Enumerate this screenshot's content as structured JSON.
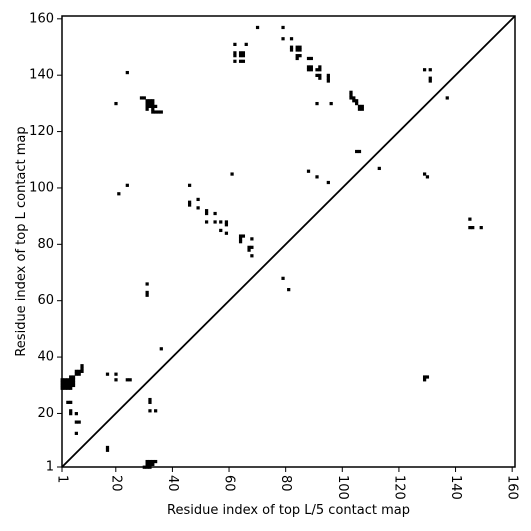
{
  "chart_data": {
    "type": "heatmap",
    "title": "",
    "xlabel": "Residue index of top L/5 contact map",
    "ylabel": "Residue index of top L contact map",
    "xlim": [
      1,
      161
    ],
    "ylim": [
      1,
      161
    ],
    "xticks": [
      1,
      20,
      40,
      60,
      80,
      100,
      120,
      140,
      160
    ],
    "yticks": [
      1,
      20,
      40,
      60,
      80,
      100,
      120,
      140,
      160
    ],
    "xtick_labels": [
      "1",
      "20",
      "40",
      "60",
      "80",
      "100",
      "120",
      "140",
      "160"
    ],
    "ytick_labels": [
      "1",
      "20",
      "40",
      "60",
      "80",
      "100",
      "120",
      "140",
      "160"
    ],
    "xtick_rotation": -90,
    "diagonal": true,
    "color": "#000000",
    "contacts_upper": [
      [
        20,
        130
      ],
      [
        24,
        141
      ],
      [
        29,
        132
      ],
      [
        30,
        132
      ],
      [
        31,
        131
      ],
      [
        32,
        131
      ],
      [
        33,
        131
      ],
      [
        31,
        130
      ],
      [
        32,
        130
      ],
      [
        33,
        130
      ],
      [
        31,
        129
      ],
      [
        32,
        129
      ],
      [
        33,
        129
      ],
      [
        34,
        129
      ],
      [
        31,
        128
      ],
      [
        33,
        128
      ],
      [
        33,
        127
      ],
      [
        34,
        127
      ],
      [
        35,
        127
      ],
      [
        36,
        127
      ],
      [
        62,
        151
      ],
      [
        66,
        151
      ],
      [
        62,
        148
      ],
      [
        64,
        148
      ],
      [
        65,
        148
      ],
      [
        62,
        147
      ],
      [
        64,
        147
      ],
      [
        65,
        147
      ],
      [
        62,
        145
      ],
      [
        64,
        145
      ],
      [
        65,
        145
      ],
      [
        70,
        157
      ],
      [
        79,
        157
      ],
      [
        79,
        153
      ],
      [
        82,
        153
      ],
      [
        82,
        150
      ],
      [
        84,
        150
      ],
      [
        85,
        150
      ],
      [
        82,
        149
      ],
      [
        84,
        149
      ],
      [
        85,
        149
      ],
      [
        84,
        147
      ],
      [
        85,
        147
      ],
      [
        84,
        146
      ],
      [
        88,
        146
      ],
      [
        89,
        146
      ],
      [
        88,
        143
      ],
      [
        89,
        143
      ],
      [
        92,
        143
      ],
      [
        88,
        142
      ],
      [
        89,
        142
      ],
      [
        91,
        142
      ],
      [
        92,
        142
      ],
      [
        91,
        140
      ],
      [
        92,
        140
      ],
      [
        95,
        140
      ],
      [
        92,
        139
      ],
      [
        95,
        139
      ],
      [
        95,
        138
      ],
      [
        91,
        130
      ],
      [
        96,
        130
      ],
      [
        103,
        134
      ],
      [
        103,
        133
      ],
      [
        103,
        132
      ],
      [
        104,
        132
      ],
      [
        104,
        131
      ],
      [
        105,
        131
      ],
      [
        105,
        130
      ],
      [
        106,
        129
      ],
      [
        107,
        129
      ],
      [
        106,
        128
      ],
      [
        107,
        128
      ],
      [
        105,
        113
      ],
      [
        106,
        113
      ],
      [
        113,
        107
      ],
      [
        129,
        142
      ],
      [
        131,
        142
      ],
      [
        131,
        139
      ],
      [
        131,
        138
      ],
      [
        137,
        132
      ],
      [
        129,
        105
      ],
      [
        130,
        104
      ],
      [
        88,
        106
      ],
      [
        91,
        104
      ],
      [
        95,
        102
      ],
      [
        46,
        101
      ],
      [
        46,
        95
      ],
      [
        46,
        94
      ],
      [
        49,
        96
      ],
      [
        49,
        93
      ],
      [
        52,
        92
      ],
      [
        52,
        91
      ],
      [
        55,
        91
      ],
      [
        52,
        88
      ],
      [
        55,
        88
      ],
      [
        57,
        88
      ],
      [
        59,
        88
      ],
      [
        59,
        87
      ],
      [
        57,
        85
      ],
      [
        59,
        84
      ],
      [
        64,
        83
      ],
      [
        65,
        83
      ],
      [
        64,
        82
      ],
      [
        68,
        82
      ],
      [
        64,
        81
      ],
      [
        67,
        79
      ],
      [
        68,
        79
      ],
      [
        67,
        78
      ],
      [
        68,
        76
      ],
      [
        21,
        98
      ],
      [
        24,
        101
      ],
      [
        61,
        105
      ],
      [
        145,
        89
      ],
      [
        145,
        86
      ],
      [
        146,
        86
      ],
      [
        149,
        86
      ]
    ],
    "contacts_lower": [
      [
        1,
        32
      ],
      [
        2,
        32
      ],
      [
        3,
        32
      ],
      [
        4,
        32
      ],
      [
        1,
        31
      ],
      [
        2,
        31
      ],
      [
        3,
        31
      ],
      [
        4,
        31
      ],
      [
        5,
        31
      ],
      [
        1,
        30
      ],
      [
        2,
        30
      ],
      [
        3,
        30
      ],
      [
        4,
        30
      ],
      [
        5,
        30
      ],
      [
        1,
        29
      ],
      [
        2,
        29
      ],
      [
        3,
        29
      ],
      [
        4,
        29
      ],
      [
        4,
        33
      ],
      [
        5,
        33
      ],
      [
        5,
        32
      ],
      [
        6,
        34
      ],
      [
        7,
        34
      ],
      [
        6,
        35
      ],
      [
        7,
        35
      ],
      [
        8,
        35
      ],
      [
        8,
        36
      ],
      [
        8,
        37
      ],
      [
        3,
        24
      ],
      [
        4,
        24
      ],
      [
        4,
        21
      ],
      [
        4,
        20
      ],
      [
        6,
        17
      ],
      [
        7,
        17
      ],
      [
        6,
        13
      ],
      [
        6,
        20
      ],
      [
        17,
        34
      ],
      [
        20,
        34
      ],
      [
        20,
        32
      ],
      [
        24,
        32
      ],
      [
        25,
        32
      ],
      [
        17,
        8
      ],
      [
        17,
        7
      ],
      [
        30,
        1
      ],
      [
        31,
        2
      ],
      [
        32,
        2
      ],
      [
        33,
        2
      ],
      [
        31,
        3
      ],
      [
        32,
        3
      ],
      [
        33,
        3
      ],
      [
        34,
        3
      ],
      [
        31,
        1
      ],
      [
        32,
        1
      ],
      [
        31,
        66
      ],
      [
        31,
        63
      ],
      [
        31,
        62
      ],
      [
        36,
        43
      ],
      [
        32,
        25
      ],
      [
        32,
        24
      ],
      [
        32,
        21
      ],
      [
        34,
        21
      ],
      [
        79,
        68
      ],
      [
        81,
        64
      ],
      [
        129,
        33
      ],
      [
        130,
        33
      ],
      [
        129,
        32
      ]
    ]
  }
}
